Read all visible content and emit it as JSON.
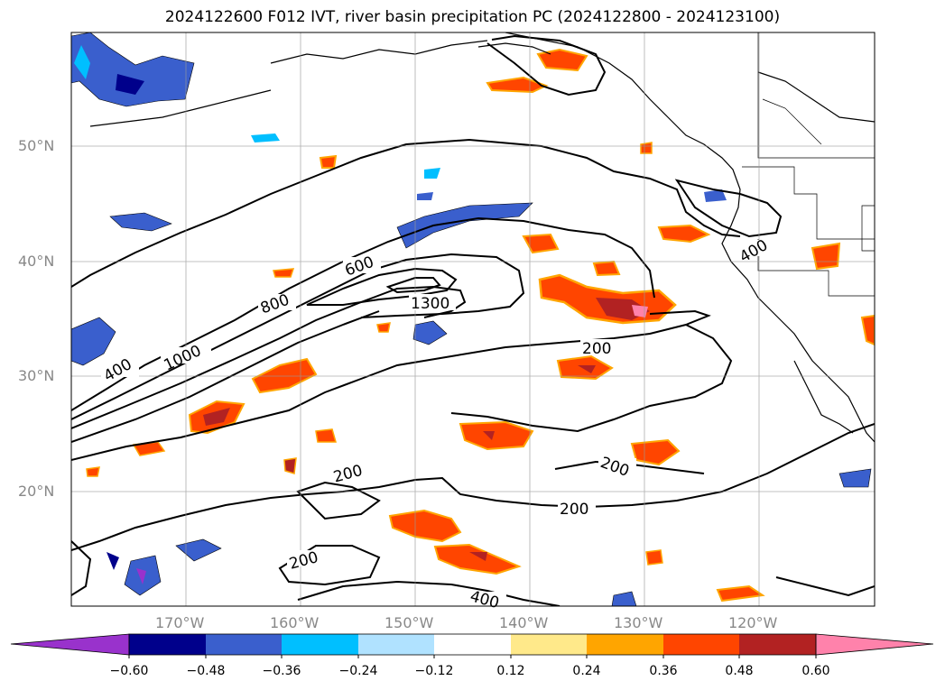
{
  "title": "2024122600 F012 IVT, river basin precipitation PC (2024122800 - 2024123100)",
  "map": {
    "lat_labels": [
      "50°N",
      "40°N",
      "30°N",
      "20°N"
    ],
    "lon_labels": [
      "170°W",
      "160°W",
      "150°W",
      "140°W",
      "130°W",
      "120°W"
    ],
    "contour_labels": [
      "600",
      "800",
      "1300",
      "1000",
      "400",
      "200",
      "200",
      "200",
      "200",
      "200",
      "400",
      "400"
    ],
    "ivt_levels": [
      200,
      400,
      600,
      800,
      1000,
      1300
    ]
  },
  "colorbar": {
    "ticks": [
      "−0.60",
      "−0.48",
      "−0.36",
      "−0.24",
      "−0.12",
      "0.12",
      "0.24",
      "0.36",
      "0.48",
      "0.60"
    ],
    "colors": [
      "#9932cc",
      "#00008b",
      "#3a5fcd",
      "#00bfff",
      "#b0e2ff",
      "#ffffff",
      "#ffe98a",
      "#ffa500",
      "#ff4500",
      "#b22222",
      "#ff82ab"
    ]
  }
}
